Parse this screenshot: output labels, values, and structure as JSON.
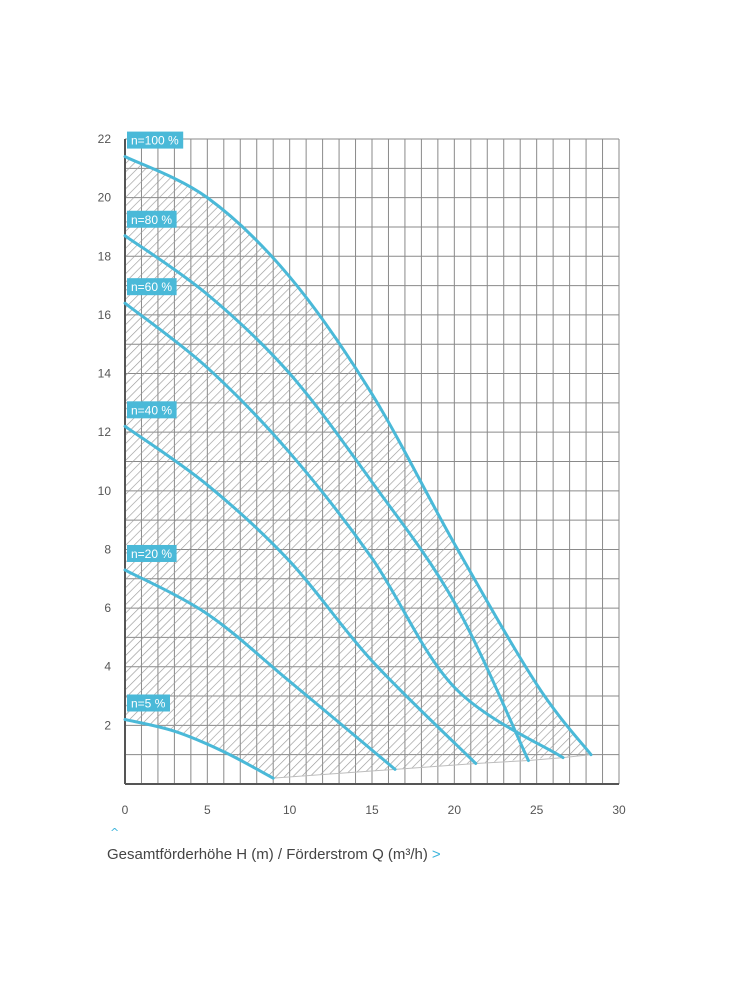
{
  "colors": {
    "curve": "#4ab9d8",
    "label_bg": "#4ab9d8",
    "label_text": "#ffffff",
    "grid": "#8a8a8a",
    "axis": "#555555",
    "hatch": "#9a9a9a",
    "accent_arrow": "#3cb4dc"
  },
  "caption": {
    "text": "Gesamtförderhöhe H (m) / Förderstrom Q (m³/h)",
    "arrow_right": ">",
    "arrow_up": "^"
  },
  "chart_data": {
    "type": "line",
    "title": "",
    "xlabel": "Gesamtförderhöhe H (m) / Förderstrom Q (m³/h)",
    "ylabel": "",
    "xlim": [
      0,
      30
    ],
    "ylim": [
      0,
      22
    ],
    "x_ticks": [
      0,
      5,
      10,
      15,
      20,
      25,
      30
    ],
    "y_ticks": [
      2,
      4,
      6,
      8,
      10,
      12,
      14,
      16,
      18,
      20,
      22
    ],
    "grid": true,
    "minor_grid_step_x": 1,
    "minor_grid_step_y": 1,
    "hatched_operating_area": true,
    "series": [
      {
        "name": "n=100 %",
        "points": [
          [
            0,
            21.4
          ],
          [
            5,
            20.0
          ],
          [
            10,
            17.3
          ],
          [
            15,
            13.3
          ],
          [
            20,
            8.2
          ],
          [
            25,
            3.4
          ],
          [
            28.3,
            1.0
          ]
        ]
      },
      {
        "name": "n=80 %",
        "points": [
          [
            0,
            18.7
          ],
          [
            5,
            16.7
          ],
          [
            10,
            14.0
          ],
          [
            15,
            10.3
          ],
          [
            20,
            6.2
          ],
          [
            24.5,
            0.8
          ]
        ]
      },
      {
        "name": "n=60 %",
        "points": [
          [
            0,
            16.4
          ],
          [
            5,
            14.2
          ],
          [
            10,
            11.3
          ],
          [
            15,
            7.7
          ],
          [
            20,
            3.3
          ],
          [
            26.6,
            0.9
          ]
        ]
      },
      {
        "name": "n=40 %",
        "points": [
          [
            0,
            12.2
          ],
          [
            5,
            10.2
          ],
          [
            10,
            7.6
          ],
          [
            15,
            4.2
          ],
          [
            21.3,
            0.7
          ]
        ]
      },
      {
        "name": "n=20 %",
        "points": [
          [
            0,
            7.3
          ],
          [
            5,
            5.8
          ],
          [
            10,
            3.5
          ],
          [
            16.4,
            0.5
          ]
        ]
      },
      {
        "name": "n=5 %",
        "points": [
          [
            0,
            2.2
          ],
          [
            3,
            1.8
          ],
          [
            6,
            1.1
          ],
          [
            9,
            0.2
          ]
        ]
      }
    ]
  }
}
